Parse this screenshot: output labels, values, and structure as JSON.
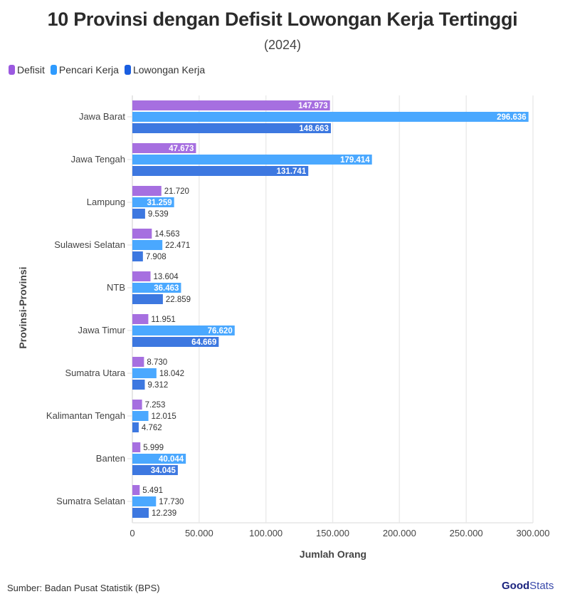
{
  "chart_data": {
    "type": "bar",
    "orientation": "horizontal",
    "title": "10 Provinsi dengan Defisit Lowongan Kerja Tertinggi",
    "subtitle": "(2024)",
    "xlabel": "Jumlah Orang",
    "ylabel": "Provinsi-Provinsi",
    "xlim": [
      0,
      300000
    ],
    "x_ticks": [
      0,
      50000,
      100000,
      150000,
      200000,
      250000,
      300000
    ],
    "x_tick_labels": [
      "0",
      "50.000",
      "100.000",
      "150.000",
      "200.000",
      "250.000",
      "300.000"
    ],
    "grid": true,
    "legend_position": "top-left",
    "categories": [
      "Jawa Barat",
      "Jawa Tengah",
      "Lampung",
      "Sulawesi Selatan",
      "NTB",
      "Jawa Timur",
      "Sumatra Utara",
      "Kalimantan Tengah",
      "Banten",
      "Sumatra Selatan"
    ],
    "series": [
      {
        "name": "Defisit",
        "color": "#a66fe0",
        "values": [
          147973,
          47673,
          21720,
          14563,
          13604,
          11951,
          8730,
          7253,
          5999,
          5491
        ],
        "labels": [
          "147.973",
          "47.673",
          "21.720",
          "14.563",
          "13.604",
          "11.951",
          "8.730",
          "7.253",
          "5.999",
          "5.491"
        ]
      },
      {
        "name": "Pencari Kerja",
        "color": "#4aa8ff",
        "values": [
          296636,
          179414,
          31259,
          22471,
          36463,
          76620,
          18042,
          12015,
          40044,
          17730
        ],
        "labels": [
          "296.636",
          "179.414",
          "31.259",
          "22.471",
          "36.463",
          "76.620",
          "18.042",
          "12.015",
          "40.044",
          "17.730"
        ]
      },
      {
        "name": "Lowongan Kerja",
        "color": "#3d78e0",
        "values": [
          148663,
          131741,
          9539,
          7908,
          22859,
          64669,
          9312,
          4762,
          34045,
          12239
        ],
        "labels": [
          "148.663",
          "131.741",
          "9.539",
          "7.908",
          "22.859",
          "64.669",
          "9.312",
          "4.762",
          "34.045",
          "12.239"
        ]
      }
    ]
  },
  "legend": [
    {
      "label": "Defisit",
      "color": "#9b59e0"
    },
    {
      "label": "Pencari Kerja",
      "color": "#2e9bff"
    },
    {
      "label": "Lowongan Kerja",
      "color": "#1a5ee0"
    }
  ],
  "footer": {
    "source": "Sumber: Badan Pusat Statistik (BPS)",
    "logo_bold": "Good",
    "logo_light": "Stats"
  }
}
